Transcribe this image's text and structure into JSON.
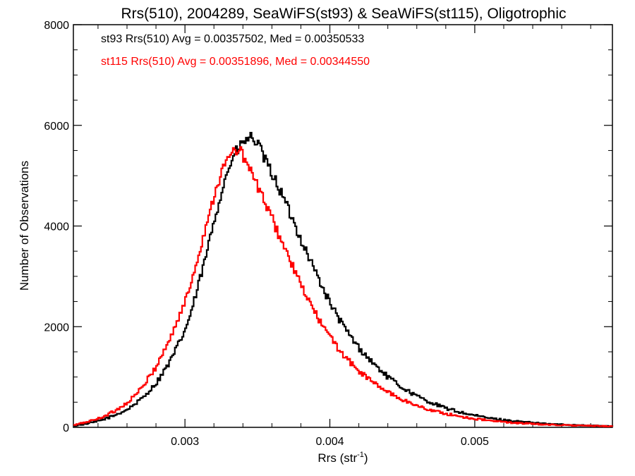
{
  "chart_data": {
    "type": "line",
    "title": "Rrs(510), 2004289, SeaWiFS(st93) & SeaWiFS(st115), Oligotrophic",
    "xlabel": "Rrs (str",
    "xlabel_sup": "-1",
    "xlabel_close": ")",
    "ylabel": "Number of Observations",
    "xlim": [
      0.00223,
      0.00595
    ],
    "ylim": [
      0,
      8000
    ],
    "xticks": [
      {
        "value": 0.003,
        "label": "0.003"
      },
      {
        "value": 0.004,
        "label": "0.004"
      },
      {
        "value": 0.005,
        "label": "0.005"
      }
    ],
    "yticks": [
      {
        "value": 0,
        "label": "0"
      },
      {
        "value": 2000,
        "label": "2000"
      },
      {
        "value": 4000,
        "label": "4000"
      },
      {
        "value": 6000,
        "label": "6000"
      },
      {
        "value": 8000,
        "label": "8000"
      }
    ],
    "annotations": [
      {
        "text": "st93 Rrs(510) Avg = 0.00357502, Med = 0.00350533",
        "color": "#000000"
      },
      {
        "text": "st115 Rrs(510) Avg = 0.00351896, Med = 0.00344550",
        "color": "#ff0000"
      }
    ],
    "series": [
      {
        "name": "st93",
        "color": "#000000",
        "x": [
          0.00223,
          0.0023,
          0.0024,
          0.0025,
          0.0026,
          0.0027,
          0.0028,
          0.0029,
          0.003,
          0.00305,
          0.0031,
          0.00315,
          0.0032,
          0.00325,
          0.0033,
          0.00335,
          0.0034,
          0.00343,
          0.00346,
          0.00349,
          0.00352,
          0.00355,
          0.0036,
          0.00365,
          0.0037,
          0.00375,
          0.0038,
          0.00385,
          0.0039,
          0.00395,
          0.004,
          0.00405,
          0.0041,
          0.00415,
          0.0042,
          0.0043,
          0.0044,
          0.0045,
          0.0046,
          0.0047,
          0.0048,
          0.0049,
          0.005,
          0.0051,
          0.0052,
          0.0053,
          0.0054,
          0.0055,
          0.0056,
          0.0057,
          0.0058,
          0.00595
        ],
        "y": [
          30,
          60,
          120,
          220,
          350,
          560,
          870,
          1320,
          1920,
          2350,
          2900,
          3450,
          4100,
          4650,
          5150,
          5450,
          5650,
          5720,
          5760,
          5680,
          5520,
          5320,
          5050,
          4750,
          4420,
          4080,
          3740,
          3420,
          3100,
          2780,
          2480,
          2220,
          1980,
          1780,
          1580,
          1270,
          1000,
          790,
          620,
          490,
          380,
          300,
          235,
          185,
          145,
          115,
          90,
          70,
          55,
          45,
          35,
          20
        ]
      },
      {
        "name": "st115",
        "color": "#ff0000",
        "x": [
          0.00223,
          0.0023,
          0.0024,
          0.0025,
          0.0026,
          0.0027,
          0.0028,
          0.0029,
          0.003,
          0.00305,
          0.0031,
          0.00315,
          0.0032,
          0.00325,
          0.0033,
          0.00333,
          0.00336,
          0.00339,
          0.00342,
          0.00345,
          0.0035,
          0.00355,
          0.0036,
          0.00365,
          0.0037,
          0.00375,
          0.0038,
          0.00385,
          0.0039,
          0.00395,
          0.004,
          0.00405,
          0.0041,
          0.00415,
          0.0042,
          0.0043,
          0.0044,
          0.0045,
          0.0046,
          0.0047,
          0.0048,
          0.0049,
          0.005,
          0.0051,
          0.0052,
          0.0053,
          0.0054,
          0.0055,
          0.0056,
          0.0057,
          0.0058,
          0.00595
        ],
        "y": [
          40,
          90,
          170,
          300,
          480,
          770,
          1200,
          1780,
          2480,
          2950,
          3500,
          4050,
          4600,
          5050,
          5350,
          5470,
          5520,
          5450,
          5300,
          5100,
          4800,
          4480,
          4150,
          3820,
          3480,
          3150,
          2830,
          2540,
          2270,
          2020,
          1800,
          1600,
          1420,
          1260,
          1120,
          890,
          700,
          550,
          430,
          340,
          270,
          215,
          170,
          135,
          105,
          85,
          68,
          55,
          45,
          37,
          30,
          20
        ]
      }
    ]
  }
}
